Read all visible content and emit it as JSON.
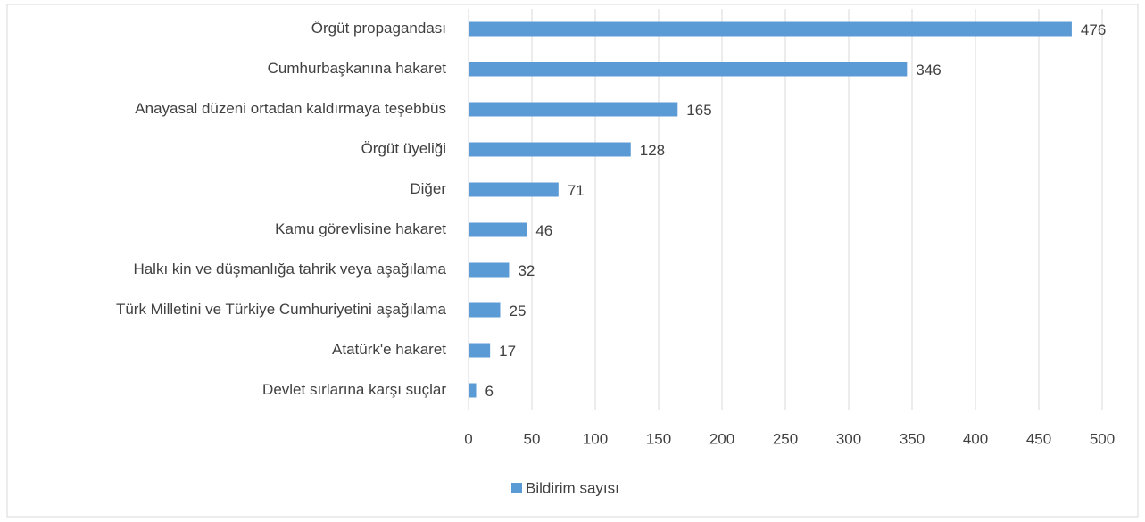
{
  "chart_data": {
    "type": "bar",
    "orientation": "horizontal",
    "categories": [
      "Örgüt propagandası",
      "Cumhurbaşkanına hakaret",
      "Anayasal düzeni ortadan kaldırmaya teşebbüs",
      "Örgüt üyeliği",
      "Diğer",
      "Kamu görevlisine hakaret",
      "Halkı kin ve düşmanlığa tahrik veya aşağılama",
      "Türk Milletini ve Türkiye Cumhuriyetini aşağılama",
      "Atatürk'e hakaret",
      "Devlet sırlarına karşı suçlar"
    ],
    "series": [
      {
        "name": "Bildirim sayısı",
        "color": "#5b9bd5",
        "values": [
          476,
          346,
          165,
          128,
          71,
          46,
          32,
          25,
          17,
          6
        ]
      }
    ],
    "xlim": [
      0,
      500
    ],
    "xticks": [
      0,
      50,
      100,
      150,
      200,
      250,
      300,
      350,
      400,
      450,
      500
    ],
    "grid": true,
    "legend": "bottom"
  }
}
